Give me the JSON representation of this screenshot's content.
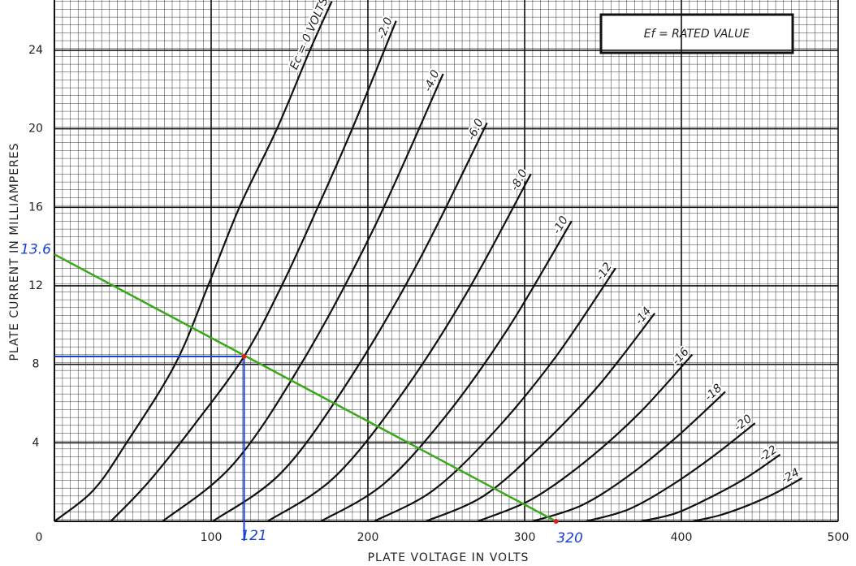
{
  "chart_data": {
    "type": "line",
    "xlabel": "PLATE VOLTAGE IN VOLTS",
    "ylabel": "PLATE CURRENT IN MILLIAMPERES",
    "legend_box": "Ef = RATED VALUE",
    "xlim": [
      0,
      500
    ],
    "ylim": [
      0,
      26.5
    ],
    "xticks": [
      0,
      100,
      200,
      300,
      400,
      500
    ],
    "yticks": [
      4,
      8,
      12,
      16,
      20,
      24
    ],
    "grid": true,
    "color": "#111111",
    "series": [
      {
        "name": "Ec = 0 VOLTS",
        "x": [
          0,
          25,
          46,
          77,
          98,
          118,
          142,
          163,
          177
        ],
        "values": [
          0,
          1.6,
          4,
          8,
          12,
          16,
          20,
          24,
          26.5
        ]
      },
      {
        "name": "-2.0",
        "x": [
          36,
          60,
          90,
          121,
          145,
          168,
          190,
          218
        ],
        "values": [
          0,
          2,
          5,
          8.4,
          12,
          16,
          20,
          25.5
        ]
      },
      {
        "name": "-4.0",
        "x": [
          69,
          114,
          158,
          203,
          248
        ],
        "values": [
          0,
          2.9,
          8.1,
          14.8,
          22.8
        ]
      },
      {
        "name": "-6.0",
        "x": [
          101,
          145,
          188,
          232,
          276
        ],
        "values": [
          0,
          2.5,
          7.2,
          13.2,
          20.3
        ]
      },
      {
        "name": "-8.0",
        "x": [
          136,
          178,
          220,
          262,
          304
        ],
        "values": [
          0,
          2.2,
          6.3,
          11.5,
          17.7
        ]
      },
      {
        "name": "-10",
        "x": [
          170,
          210,
          250,
          290,
          330
        ],
        "values": [
          0,
          1.9,
          5.4,
          9.9,
          15.3
        ]
      },
      {
        "name": "-12",
        "x": [
          204,
          242,
          281,
          320,
          358
        ],
        "values": [
          0,
          1.6,
          4.6,
          8.4,
          12.9
        ]
      },
      {
        "name": "-14",
        "x": [
          237,
          274,
          310,
          347,
          383
        ],
        "values": [
          0,
          1.3,
          3.8,
          6.9,
          10.6
        ]
      },
      {
        "name": "-16",
        "x": [
          270,
          304,
          338,
          373,
          407
        ],
        "values": [
          0,
          1.1,
          3.0,
          5.5,
          8.5
        ]
      },
      {
        "name": "-18",
        "x": [
          305,
          336,
          366,
          397,
          428
        ],
        "values": [
          0,
          0.8,
          2.3,
          4.3,
          6.6
        ]
      },
      {
        "name": "-20",
        "x": [
          339,
          366,
          393,
          420,
          447
        ],
        "values": [
          0,
          0.6,
          1.8,
          3.3,
          5.0
        ]
      },
      {
        "name": "-22",
        "x": [
          374,
          396,
          418,
          441,
          463
        ],
        "values": [
          0,
          0.4,
          1.2,
          2.2,
          3.4
        ]
      },
      {
        "name": "-24",
        "x": [
          407,
          424,
          442,
          459,
          477
        ],
        "values": [
          0,
          0.3,
          0.8,
          1.4,
          2.2
        ]
      }
    ],
    "load_line": {
      "color": "#3aa81c",
      "x": [
        0,
        320
      ],
      "values": [
        13.6,
        0
      ]
    },
    "operating_point": {
      "color": "#1a3fd6",
      "x": 121,
      "y": 8.4
    }
  }
}
